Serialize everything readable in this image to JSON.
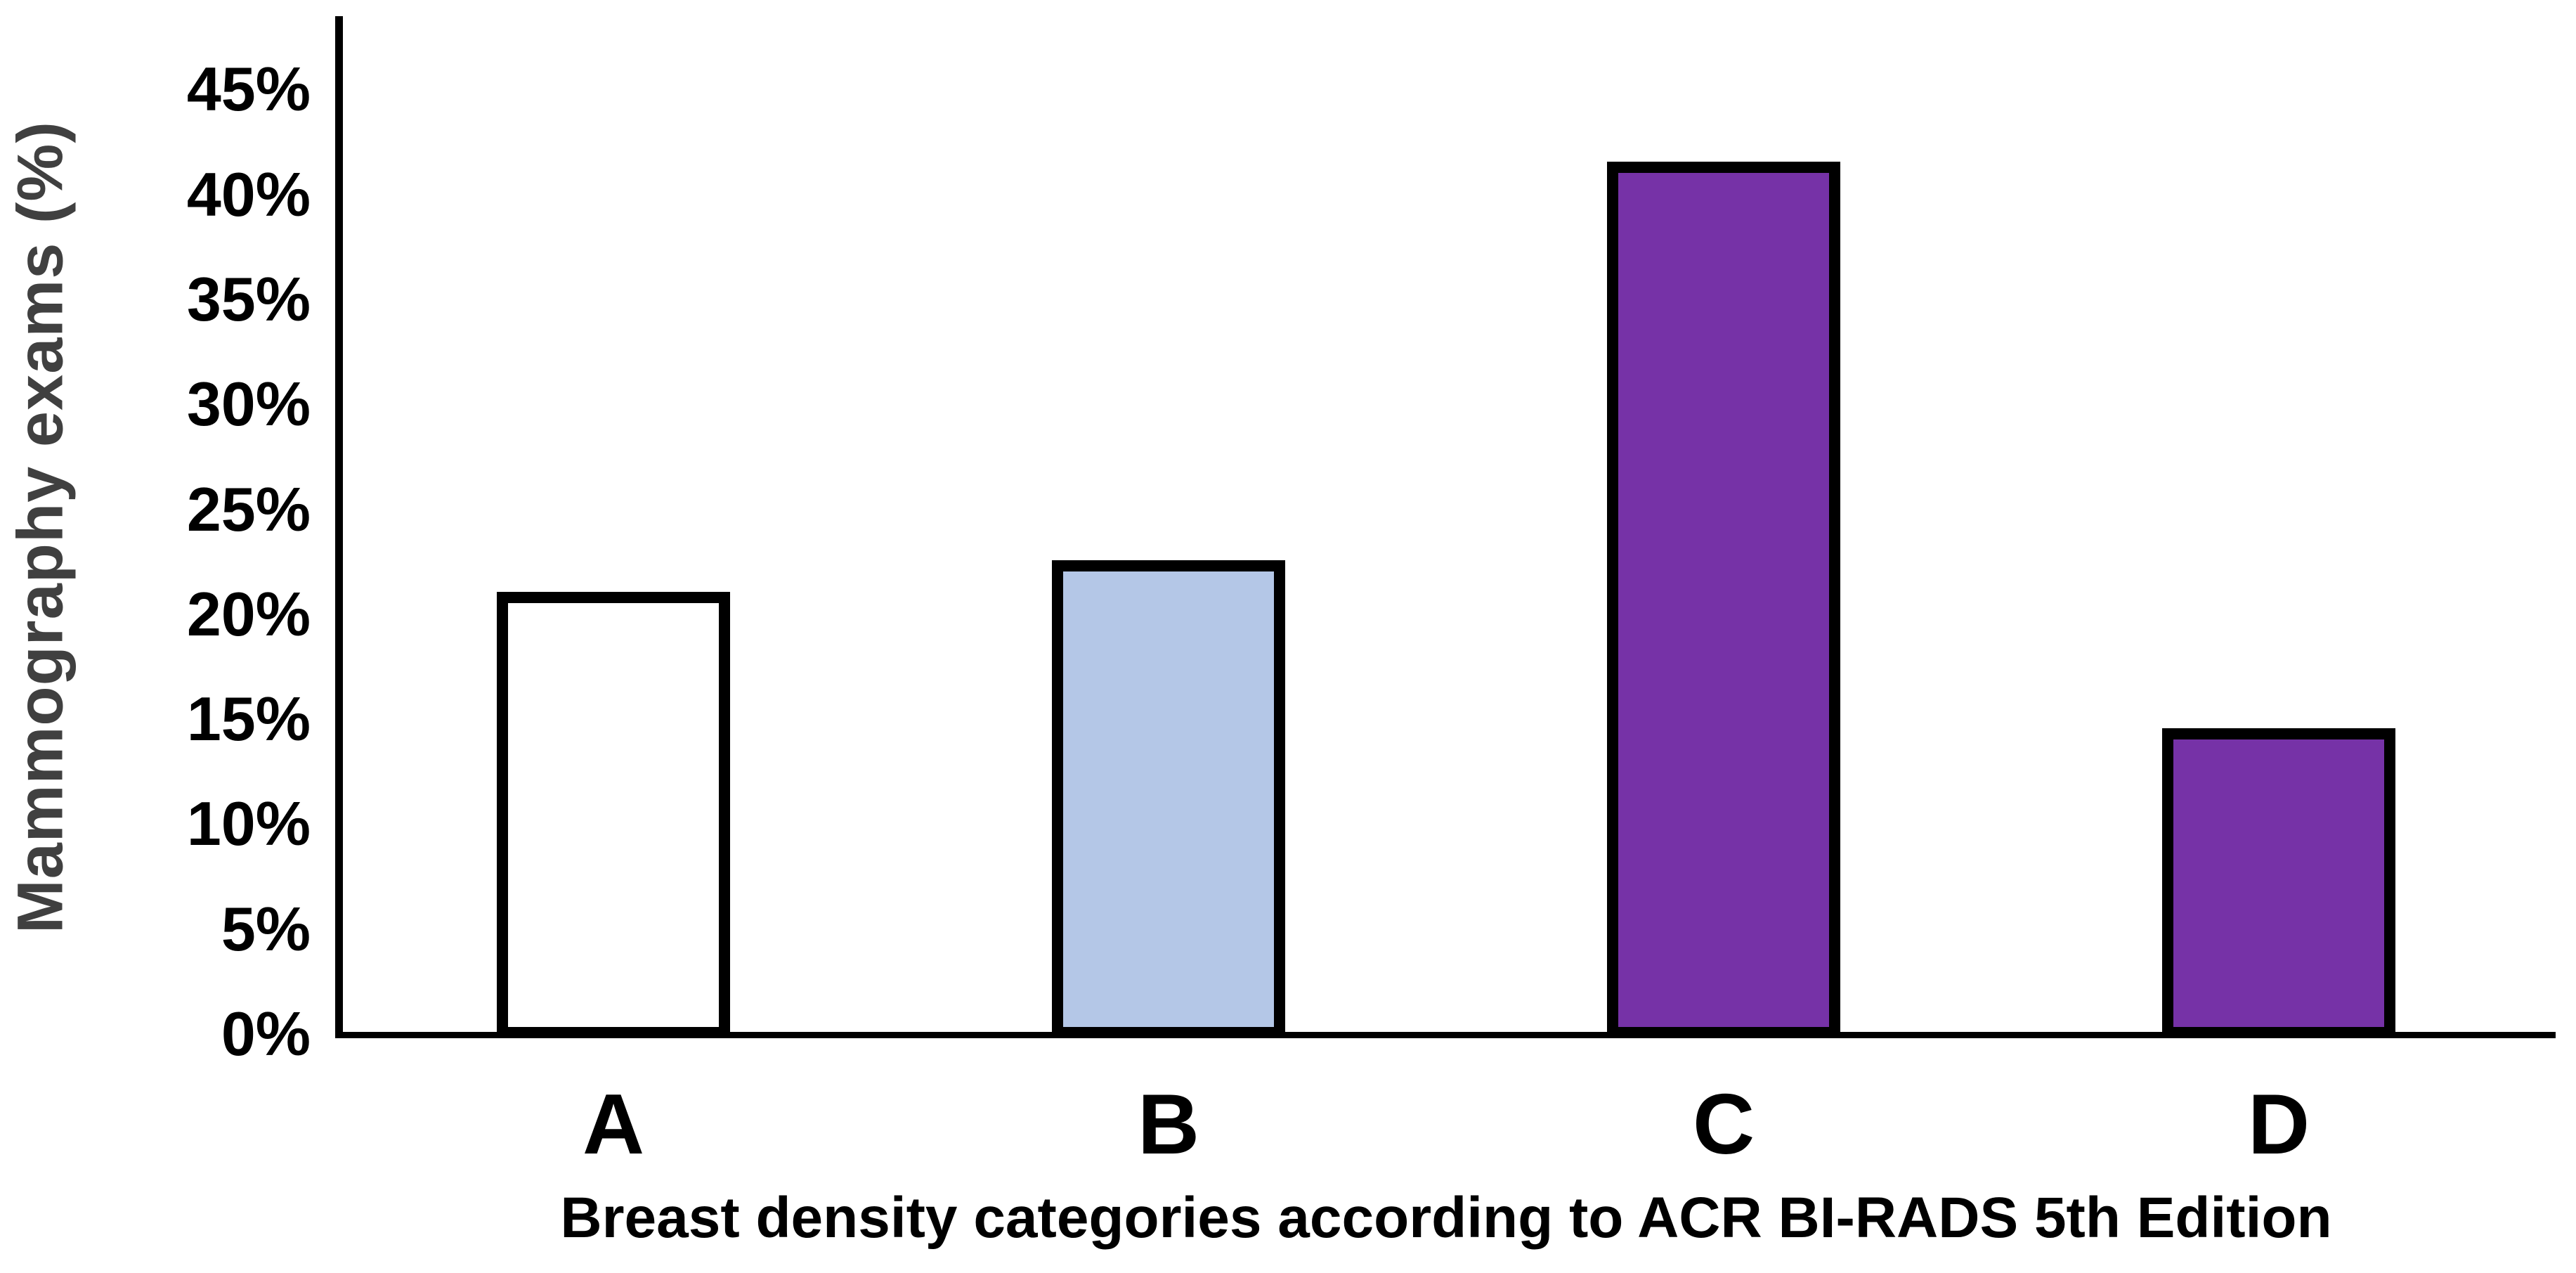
{
  "page": {
    "background_color": "#FFFFFF"
  },
  "chart_data": {
    "type": "bar",
    "title": "",
    "categories": [
      "A",
      "B",
      "C",
      "D"
    ],
    "values": [
      21,
      22.5,
      41.5,
      14.5
    ],
    "series": [
      {
        "name": "Mammography exams (%)",
        "values": [
          21,
          22.5,
          41.5,
          14.5
        ]
      }
    ],
    "bars": [
      {
        "category": "A",
        "value": 21,
        "fill": "#FFFFFF"
      },
      {
        "category": "B",
        "value": 22.5,
        "fill": "#B4C7E7"
      },
      {
        "category": "C",
        "value": 41.5,
        "fill": "#7632A7"
      },
      {
        "category": "D",
        "value": 14.5,
        "fill": "#7632A7"
      }
    ],
    "xlabel": "Breast density categories according to ACR BI-RADS 5th Edition",
    "ylabel": "Mammography exams (%)",
    "ylim": [
      0,
      48
    ],
    "ytick_values": [
      0,
      5,
      10,
      15,
      20,
      25,
      30,
      35,
      40,
      45
    ],
    "ytick_labels": [
      "0%",
      "5%",
      "10%",
      "15%",
      "20%",
      "25%",
      "30%",
      "35%",
      "40%",
      "45%"
    ],
    "ytick_suffix": "%",
    "grid": false,
    "legend": false,
    "bar_border_color": "#000000",
    "axis_color": "#000000",
    "ylabel_color": "#404040",
    "tick_label_color": "#000000",
    "xlabel_color": "#000000"
  }
}
